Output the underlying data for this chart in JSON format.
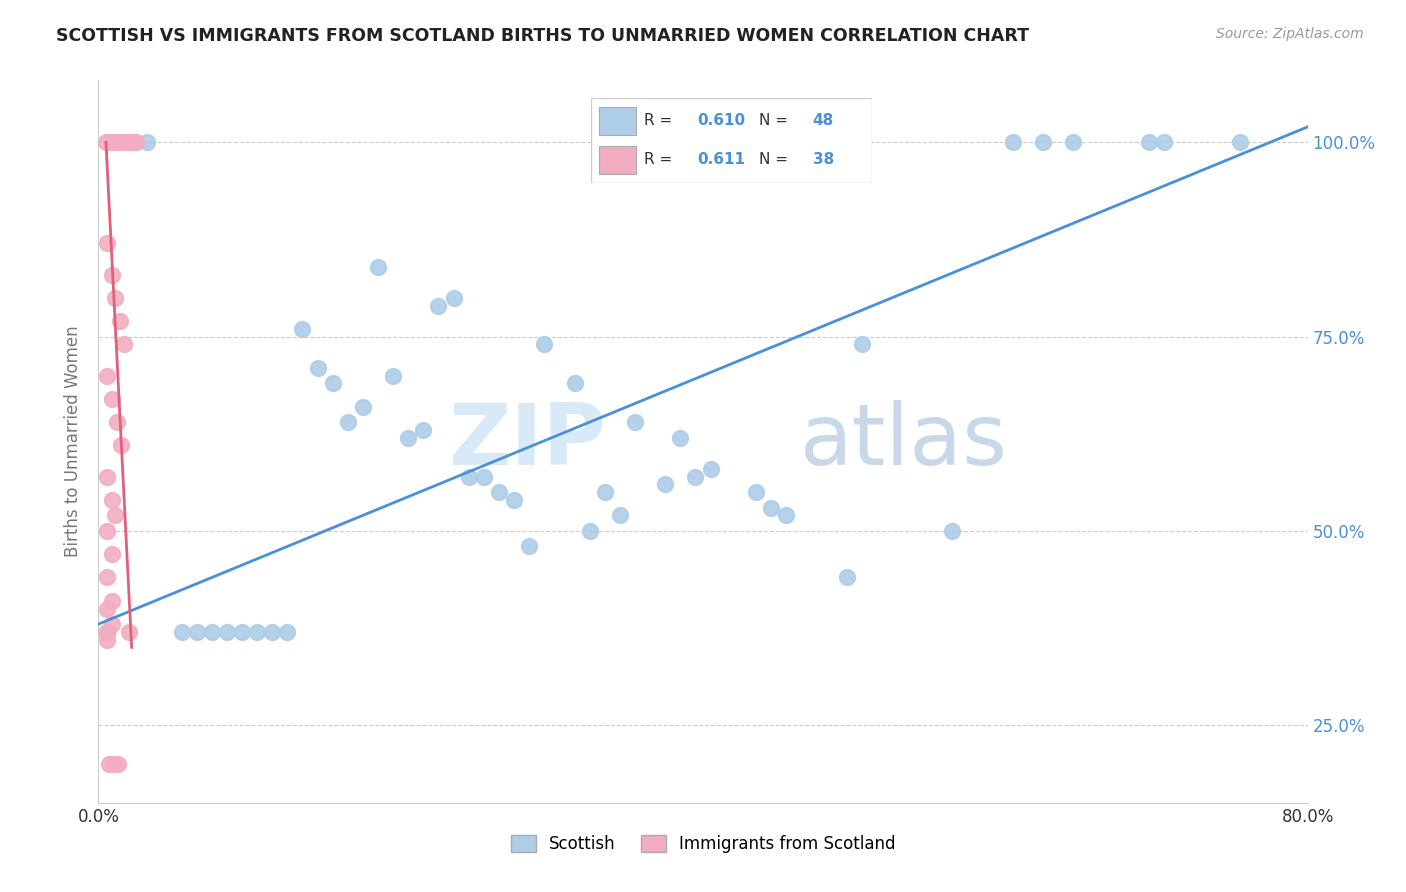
{
  "title": "SCOTTISH VS IMMIGRANTS FROM SCOTLAND BIRTHS TO UNMARRIED WOMEN CORRELATION CHART",
  "source": "Source: ZipAtlas.com",
  "ylabel": "Births to Unmarried Women",
  "xlim": [
    0.0,
    0.8
  ],
  "ylim": [
    0.15,
    1.08
  ],
  "xtick_vals": [
    0.0,
    0.2,
    0.4,
    0.6,
    0.8
  ],
  "xtick_labels": [
    "0.0%",
    "",
    "",
    "",
    "80.0%"
  ],
  "ytick_vals": [
    0.25,
    0.5,
    0.75,
    1.0
  ],
  "ytick_labels": [
    "25.0%",
    "50.0%",
    "75.0%",
    "100.0%"
  ],
  "legend1_label": "Scottish",
  "legend2_label": "Immigrants from Scotland",
  "R1": "0.610",
  "N1": "48",
  "R2": "0.611",
  "N2": "38",
  "scatter1_color": "#aecde8",
  "scatter2_color": "#f2aec0",
  "line1_color": "#4a90d9",
  "line2_color": "#e0607a",
  "line1_x0": 0.0,
  "line1_y0": 0.38,
  "line1_x1": 0.8,
  "line1_y1": 1.02,
  "line2_x0": 0.005,
  "line2_y0": 1.0,
  "line2_x1": 0.022,
  "line2_y1": 0.35,
  "watermark_zip": "ZIP",
  "watermark_atlas": "atlas",
  "background_color": "#ffffff",
  "scatter1_x": [
    0.023,
    0.032,
    0.135,
    0.155,
    0.165,
    0.185,
    0.195,
    0.215,
    0.225,
    0.235,
    0.245,
    0.265,
    0.275,
    0.295,
    0.315,
    0.335,
    0.345,
    0.355,
    0.375,
    0.385,
    0.395,
    0.145,
    0.175,
    0.205,
    0.255,
    0.405,
    0.435,
    0.445,
    0.505,
    0.565,
    0.605,
    0.625,
    0.645,
    0.695,
    0.705,
    0.755,
    0.055,
    0.065,
    0.075,
    0.085,
    0.095,
    0.105,
    0.115,
    0.125,
    0.455,
    0.495,
    0.285,
    0.325
  ],
  "scatter1_y": [
    1.0,
    1.0,
    0.76,
    0.69,
    0.64,
    0.84,
    0.7,
    0.63,
    0.79,
    0.8,
    0.57,
    0.55,
    0.54,
    0.74,
    0.69,
    0.55,
    0.52,
    0.64,
    0.56,
    0.62,
    0.57,
    0.71,
    0.66,
    0.62,
    0.57,
    0.58,
    0.55,
    0.53,
    0.74,
    0.5,
    1.0,
    1.0,
    1.0,
    1.0,
    1.0,
    1.0,
    0.37,
    0.37,
    0.37,
    0.37,
    0.37,
    0.37,
    0.37,
    0.37,
    0.52,
    0.44,
    0.48,
    0.5
  ],
  "scatter2_x": [
    0.005,
    0.008,
    0.01,
    0.012,
    0.015,
    0.018,
    0.02,
    0.023,
    0.025,
    0.006,
    0.009,
    0.011,
    0.014,
    0.017,
    0.006,
    0.009,
    0.012,
    0.015,
    0.006,
    0.009,
    0.011,
    0.006,
    0.009,
    0.006,
    0.009,
    0.006,
    0.009,
    0.006,
    0.006,
    0.006,
    0.006,
    0.006,
    0.006,
    0.006,
    0.02,
    0.007,
    0.01,
    0.013
  ],
  "scatter2_y": [
    1.0,
    1.0,
    1.0,
    1.0,
    1.0,
    1.0,
    1.0,
    1.0,
    1.0,
    0.87,
    0.83,
    0.8,
    0.77,
    0.74,
    0.7,
    0.67,
    0.64,
    0.61,
    0.57,
    0.54,
    0.52,
    0.5,
    0.47,
    0.44,
    0.41,
    0.4,
    0.38,
    0.36,
    0.37,
    0.37,
    0.37,
    0.37,
    0.37,
    0.37,
    0.37,
    0.2,
    0.2,
    0.2
  ]
}
